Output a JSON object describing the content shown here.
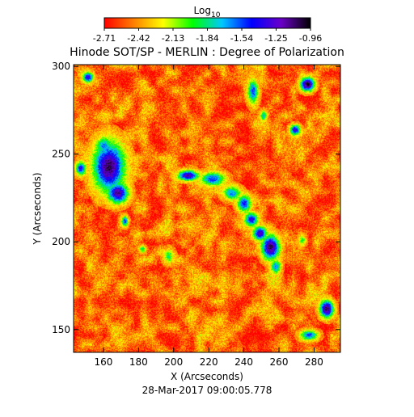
{
  "chart_data": {
    "type": "heatmap",
    "title": "Hinode SOT/SP - MERLIN : Degree of Polarization",
    "xlabel": "X (Arcseconds)",
    "ylabel": "Y (Arcseconds)",
    "date_label": "28-Mar-2017 09:00:05.778",
    "xlim": [
      143,
      295
    ],
    "ylim": [
      137,
      301
    ],
    "xticks": [
      160,
      180,
      200,
      220,
      240,
      260,
      280
    ],
    "yticks": [
      150,
      200,
      250,
      300
    ],
    "colorbar": {
      "title": "Log",
      "title_sub": "10",
      "tick_labels": [
        "-2.71",
        "-2.42",
        "-2.13",
        "-1.84",
        "-1.54",
        "-1.25",
        "-0.96"
      ],
      "range": [
        -2.71,
        -0.96
      ],
      "colors": [
        "#ff0000",
        "#ff7f00",
        "#ffff00",
        "#00ff00",
        "#00c8ff",
        "#0000ff",
        "#6a00c8",
        "#000000"
      ]
    },
    "background_level": -2.5,
    "features": [
      {
        "x": 163,
        "y": 243,
        "rx": 9,
        "ry": 14,
        "level": -1.05
      },
      {
        "x": 168,
        "y": 228,
        "rx": 6,
        "ry": 6,
        "level": -1.15
      },
      {
        "x": 160,
        "y": 255,
        "rx": 5,
        "ry": 5,
        "level": -1.6
      },
      {
        "x": 172,
        "y": 212,
        "rx": 2,
        "ry": 3,
        "level": -1.5
      },
      {
        "x": 147,
        "y": 242,
        "rx": 3,
        "ry": 4,
        "level": -1.4
      },
      {
        "x": 151,
        "y": 294,
        "rx": 3,
        "ry": 3,
        "level": -1.3
      },
      {
        "x": 208,
        "y": 238,
        "rx": 6,
        "ry": 3,
        "level": -1.2
      },
      {
        "x": 222,
        "y": 236,
        "rx": 7,
        "ry": 4,
        "level": -1.5
      },
      {
        "x": 233,
        "y": 228,
        "rx": 5,
        "ry": 4,
        "level": -1.6
      },
      {
        "x": 240,
        "y": 222,
        "rx": 4,
        "ry": 5,
        "level": -1.45
      },
      {
        "x": 244,
        "y": 213,
        "rx": 4,
        "ry": 4,
        "level": -1.35
      },
      {
        "x": 249,
        "y": 205,
        "rx": 4,
        "ry": 4,
        "level": -1.2
      },
      {
        "x": 255,
        "y": 197,
        "rx": 5,
        "ry": 7,
        "level": -1.05
      },
      {
        "x": 258,
        "y": 186,
        "rx": 3,
        "ry": 4,
        "level": -1.6
      },
      {
        "x": 245,
        "y": 286,
        "rx": 3,
        "ry": 7,
        "level": -1.5
      },
      {
        "x": 251,
        "y": 272,
        "rx": 2,
        "ry": 3,
        "level": -1.7
      },
      {
        "x": 269,
        "y": 264,
        "rx": 3,
        "ry": 3,
        "level": -1.3
      },
      {
        "x": 276,
        "y": 290,
        "rx": 4,
        "ry": 4,
        "level": -1.0
      },
      {
        "x": 287,
        "y": 162,
        "rx": 4,
        "ry": 5,
        "level": -1.05
      },
      {
        "x": 277,
        "y": 147,
        "rx": 5,
        "ry": 3,
        "level": -1.55
      },
      {
        "x": 197,
        "y": 192,
        "rx": 3,
        "ry": 4,
        "level": -1.9
      },
      {
        "x": 182,
        "y": 196,
        "rx": 2,
        "ry": 2,
        "level": -1.85
      },
      {
        "x": 273,
        "y": 201,
        "rx": 2,
        "ry": 3,
        "level": -1.9
      }
    ]
  }
}
